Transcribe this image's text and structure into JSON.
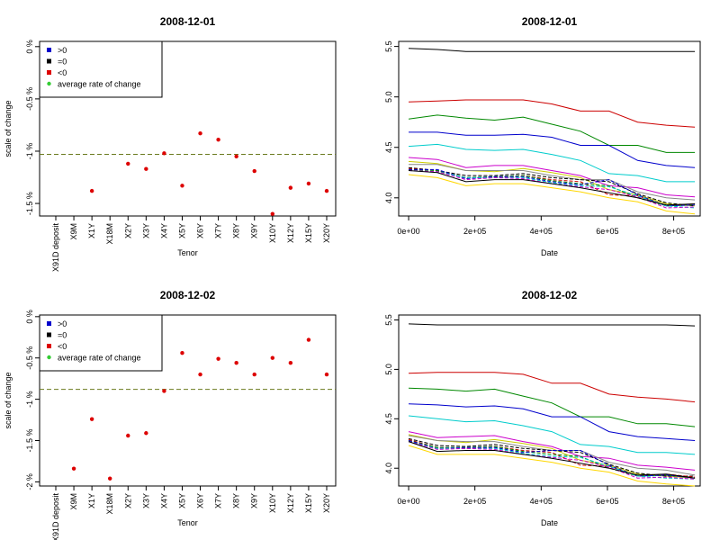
{
  "chart_data": [
    {
      "type": "scatter",
      "title": "2008-12-01",
      "xlabel": "Tenor",
      "ylabel": "scale of change",
      "categories": [
        "X91D deposit",
        "X9M",
        "X1Y",
        "X18M",
        "X2Y",
        "X3Y",
        "X4Y",
        "X5Y",
        "X6Y",
        "X7Y",
        "X8Y",
        "X9Y",
        "X10Y",
        "X12Y",
        "X15Y",
        "X20Y"
      ],
      "values": [
        null,
        null,
        -1.38,
        null,
        -1.12,
        -1.17,
        -1.02,
        -1.33,
        -0.83,
        -0.89,
        -1.05,
        -1.19,
        -1.6,
        -1.35,
        -1.31,
        -1.38
      ],
      "yticks": [
        0,
        -0.5,
        -1,
        -1.5
      ],
      "ytick_labels": [
        "0 %",
        "-0.5 %",
        "-1 %",
        "-1.5 %"
      ],
      "ylim": [
        -1.62,
        0.05
      ],
      "average_rate_of_change": -1.03,
      "legend": [
        "&gt;0",
        "=0",
        "&lt;0",
        "average rate of change"
      ],
      "legend_colors": [
        "#0000cc",
        "#000000",
        "#dd0000",
        "#33cc33"
      ],
      "point_color": "#dd0000",
      "avg_line_color": "#6b7b1f",
      "legend_position": "top-left"
    },
    {
      "type": "line",
      "title": "2008-12-01",
      "xlabel": "Date",
      "ylabel": "",
      "xticks": [
        0,
        200000,
        400000,
        600000,
        800000
      ],
      "xtick_labels": [
        "0e+00",
        "2e+05",
        "4e+05",
        "6e+05",
        "8e+05"
      ],
      "yticks": [
        4.0,
        4.5,
        5.0,
        5.5
      ],
      "ytick_labels": [
        "4.0",
        "4.5",
        "5.0",
        "5.5"
      ],
      "xlim": [
        -30000,
        880000
      ],
      "ylim": [
        3.82,
        5.55
      ],
      "x": [
        0,
        86400,
        172800,
        259200,
        345600,
        432000,
        518400,
        604800,
        691200,
        777600,
        864000
      ],
      "series": [
        {
          "color": "#000000",
          "dash": "",
          "values": [
            5.48,
            5.47,
            5.45,
            5.45,
            5.45,
            5.45,
            5.45,
            5.45,
            5.45,
            5.45,
            5.45
          ]
        },
        {
          "color": "#cc0000",
          "dash": "",
          "values": [
            4.95,
            4.96,
            4.97,
            4.97,
            4.97,
            4.93,
            4.86,
            4.86,
            4.75,
            4.72,
            4.7
          ]
        },
        {
          "color": "#008800",
          "dash": "",
          "values": [
            4.78,
            4.82,
            4.79,
            4.77,
            4.8,
            4.73,
            4.66,
            4.52,
            4.52,
            4.45,
            4.45
          ]
        },
        {
          "color": "#0000cc",
          "dash": "",
          "values": [
            4.65,
            4.65,
            4.62,
            4.62,
            4.63,
            4.6,
            4.52,
            4.52,
            4.37,
            4.32,
            4.3
          ]
        },
        {
          "color": "#00cccc",
          "dash": "",
          "values": [
            4.51,
            4.53,
            4.48,
            4.47,
            4.48,
            4.43,
            4.37,
            4.24,
            4.22,
            4.16,
            4.16
          ]
        },
        {
          "color": "#cc00cc",
          "dash": "",
          "values": [
            4.4,
            4.38,
            4.3,
            4.32,
            4.32,
            4.27,
            4.22,
            4.12,
            4.1,
            4.03,
            4.01
          ]
        },
        {
          "color": "#cccc00",
          "dash": "",
          "values": [
            4.36,
            4.34,
            4.27,
            4.26,
            4.29,
            4.25,
            4.2,
            4.08,
            4.03,
            3.94,
            3.92
          ]
        },
        {
          "color": "#888888",
          "dash": "",
          "values": [
            4.33,
            4.33,
            4.27,
            4.27,
            4.27,
            4.22,
            4.18,
            4.18,
            4.06,
            4.0,
            3.98
          ]
        },
        {
          "color": "#000000",
          "dash": "4,2",
          "values": [
            4.3,
            4.27,
            4.22,
            4.22,
            4.24,
            4.2,
            4.18,
            4.16,
            4.04,
            3.95,
            3.92
          ]
        },
        {
          "color": "#cc0000",
          "dash": "4,2",
          "values": [
            4.29,
            4.27,
            4.2,
            4.2,
            4.22,
            4.18,
            4.16,
            4.03,
            4.02,
            3.92,
            3.94
          ]
        },
        {
          "color": "#008800",
          "dash": "4,2",
          "values": [
            4.28,
            4.27,
            4.2,
            4.21,
            4.22,
            4.17,
            4.14,
            4.12,
            4.0,
            3.92,
            3.93
          ]
        },
        {
          "color": "#0000cc",
          "dash": "4,2",
          "values": [
            4.28,
            4.28,
            4.19,
            4.21,
            4.21,
            4.16,
            4.13,
            4.18,
            4.03,
            3.92,
            3.93
          ]
        },
        {
          "color": "#00cccc",
          "dash": "4,2",
          "values": [
            4.27,
            4.26,
            4.2,
            4.2,
            4.2,
            4.15,
            4.12,
            4.11,
            4.02,
            3.92,
            3.9
          ]
        },
        {
          "color": "#cc00cc",
          "dash": "4,2",
          "values": [
            4.27,
            4.26,
            4.18,
            4.2,
            4.19,
            4.14,
            4.11,
            4.08,
            4.01,
            3.9,
            3.91
          ]
        },
        {
          "color": "#000000",
          "dash": "",
          "values": [
            4.27,
            4.25,
            4.16,
            4.18,
            4.18,
            4.14,
            4.1,
            4.05,
            4.0,
            3.93,
            3.94
          ]
        },
        {
          "color": "#ffd700",
          "dash": "",
          "values": [
            4.23,
            4.2,
            4.12,
            4.14,
            4.14,
            4.1,
            4.06,
            4.0,
            3.96,
            3.87,
            3.84
          ]
        }
      ]
    },
    {
      "type": "scatter",
      "title": "2008-12-02",
      "xlabel": "Tenor",
      "ylabel": "scale of change",
      "categories": [
        "X91D deposit",
        "X9M",
        "X1Y",
        "X18M",
        "X2Y",
        "X3Y",
        "X4Y",
        "X5Y",
        "X6Y",
        "X7Y",
        "X8Y",
        "X9Y",
        "X10Y",
        "X12Y",
        "X15Y",
        "X20Y"
      ],
      "values": [
        null,
        -1.84,
        -1.24,
        -1.96,
        -1.44,
        -1.41,
        -0.9,
        -0.44,
        -0.7,
        -0.51,
        -0.56,
        -0.7,
        -0.5,
        -0.56,
        -0.28,
        -0.7
      ],
      "yticks": [
        0,
        -0.5,
        -1,
        -1.5,
        -2
      ],
      "ytick_labels": [
        "0 %",
        "-0.5 %",
        "-1 %",
        "-1.5 %",
        "-2 %"
      ],
      "ylim": [
        -2.05,
        0.02
      ],
      "average_rate_of_change": -0.88,
      "legend": [
        "&gt;0",
        "=0",
        "&lt;0",
        "average rate of change"
      ],
      "legend_colors": [
        "#0000cc",
        "#000000",
        "#dd0000",
        "#33cc33"
      ],
      "point_color": "#dd0000",
      "avg_line_color": "#6b7b1f",
      "legend_position": "top-left"
    },
    {
      "type": "line",
      "title": "2008-12-02",
      "xlabel": "Date",
      "ylabel": "",
      "xticks": [
        0,
        200000,
        400000,
        600000,
        800000
      ],
      "xtick_labels": [
        "0e+00",
        "2e+05",
        "4e+05",
        "6e+05",
        "8e+05"
      ],
      "yticks": [
        4.0,
        4.5,
        5.0,
        5.5
      ],
      "ytick_labels": [
        "4.0",
        "4.5",
        "5.0",
        "5.5"
      ],
      "xlim": [
        -30000,
        880000
      ],
      "ylim": [
        3.82,
        5.55
      ],
      "x": [
        0,
        86400,
        172800,
        259200,
        345600,
        432000,
        518400,
        604800,
        691200,
        777600,
        864000
      ],
      "series": [
        {
          "color": "#000000",
          "dash": "",
          "values": [
            5.46,
            5.45,
            5.45,
            5.45,
            5.45,
            5.45,
            5.45,
            5.45,
            5.45,
            5.45,
            5.44
          ]
        },
        {
          "color": "#cc0000",
          "dash": "",
          "values": [
            4.96,
            4.97,
            4.97,
            4.97,
            4.95,
            4.86,
            4.86,
            4.75,
            4.72,
            4.7,
            4.67
          ]
        },
        {
          "color": "#008800",
          "dash": "",
          "values": [
            4.81,
            4.8,
            4.78,
            4.8,
            4.73,
            4.66,
            4.52,
            4.52,
            4.45,
            4.45,
            4.42
          ]
        },
        {
          "color": "#0000cc",
          "dash": "",
          "values": [
            4.65,
            4.64,
            4.62,
            4.63,
            4.6,
            4.52,
            4.52,
            4.37,
            4.32,
            4.3,
            4.28
          ]
        },
        {
          "color": "#00cccc",
          "dash": "",
          "values": [
            4.53,
            4.5,
            4.47,
            4.48,
            4.43,
            4.37,
            4.24,
            4.22,
            4.16,
            4.16,
            4.14
          ]
        },
        {
          "color": "#cc00cc",
          "dash": "",
          "values": [
            4.37,
            4.31,
            4.32,
            4.33,
            4.27,
            4.22,
            4.12,
            4.1,
            4.03,
            4.01,
            3.98
          ]
        },
        {
          "color": "#cccc00",
          "dash": "",
          "values": [
            4.34,
            4.28,
            4.26,
            4.29,
            4.25,
            4.2,
            4.08,
            4.03,
            3.94,
            3.92,
            3.9
          ]
        },
        {
          "color": "#888888",
          "dash": "",
          "values": [
            4.33,
            4.28,
            4.27,
            4.27,
            4.22,
            4.18,
            4.18,
            4.06,
            4.0,
            3.98,
            3.93
          ]
        },
        {
          "color": "#000000",
          "dash": "4,2",
          "values": [
            4.3,
            4.23,
            4.22,
            4.24,
            4.2,
            4.18,
            4.16,
            4.04,
            3.95,
            3.92,
            3.92
          ]
        },
        {
          "color": "#cc0000",
          "dash": "4,2",
          "values": [
            4.29,
            4.21,
            4.2,
            4.22,
            4.18,
            4.16,
            4.03,
            4.02,
            3.92,
            3.94,
            3.91
          ]
        },
        {
          "color": "#008800",
          "dash": "4,2",
          "values": [
            4.28,
            4.21,
            4.21,
            4.22,
            4.17,
            4.14,
            4.12,
            4.0,
            3.92,
            3.93,
            3.9
          ]
        },
        {
          "color": "#0000cc",
          "dash": "4,2",
          "values": [
            4.28,
            4.2,
            4.21,
            4.21,
            4.16,
            4.18,
            4.18,
            4.03,
            3.92,
            3.93,
            3.9
          ]
        },
        {
          "color": "#00cccc",
          "dash": "4,2",
          "values": [
            4.27,
            4.2,
            4.2,
            4.2,
            4.15,
            4.12,
            4.11,
            4.02,
            3.92,
            3.9,
            3.89
          ]
        },
        {
          "color": "#cc00cc",
          "dash": "4,2",
          "values": [
            4.27,
            4.19,
            4.2,
            4.19,
            4.14,
            4.11,
            4.08,
            4.01,
            3.9,
            3.91,
            3.89
          ]
        },
        {
          "color": "#000000",
          "dash": "",
          "values": [
            4.27,
            4.17,
            4.18,
            4.18,
            4.14,
            4.1,
            4.05,
            4.0,
            3.93,
            3.94,
            3.9
          ]
        },
        {
          "color": "#ffd700",
          "dash": "",
          "values": [
            4.23,
            4.14,
            4.14,
            4.14,
            4.1,
            4.06,
            4.0,
            3.96,
            3.87,
            3.84,
            3.82
          ]
        }
      ]
    }
  ]
}
